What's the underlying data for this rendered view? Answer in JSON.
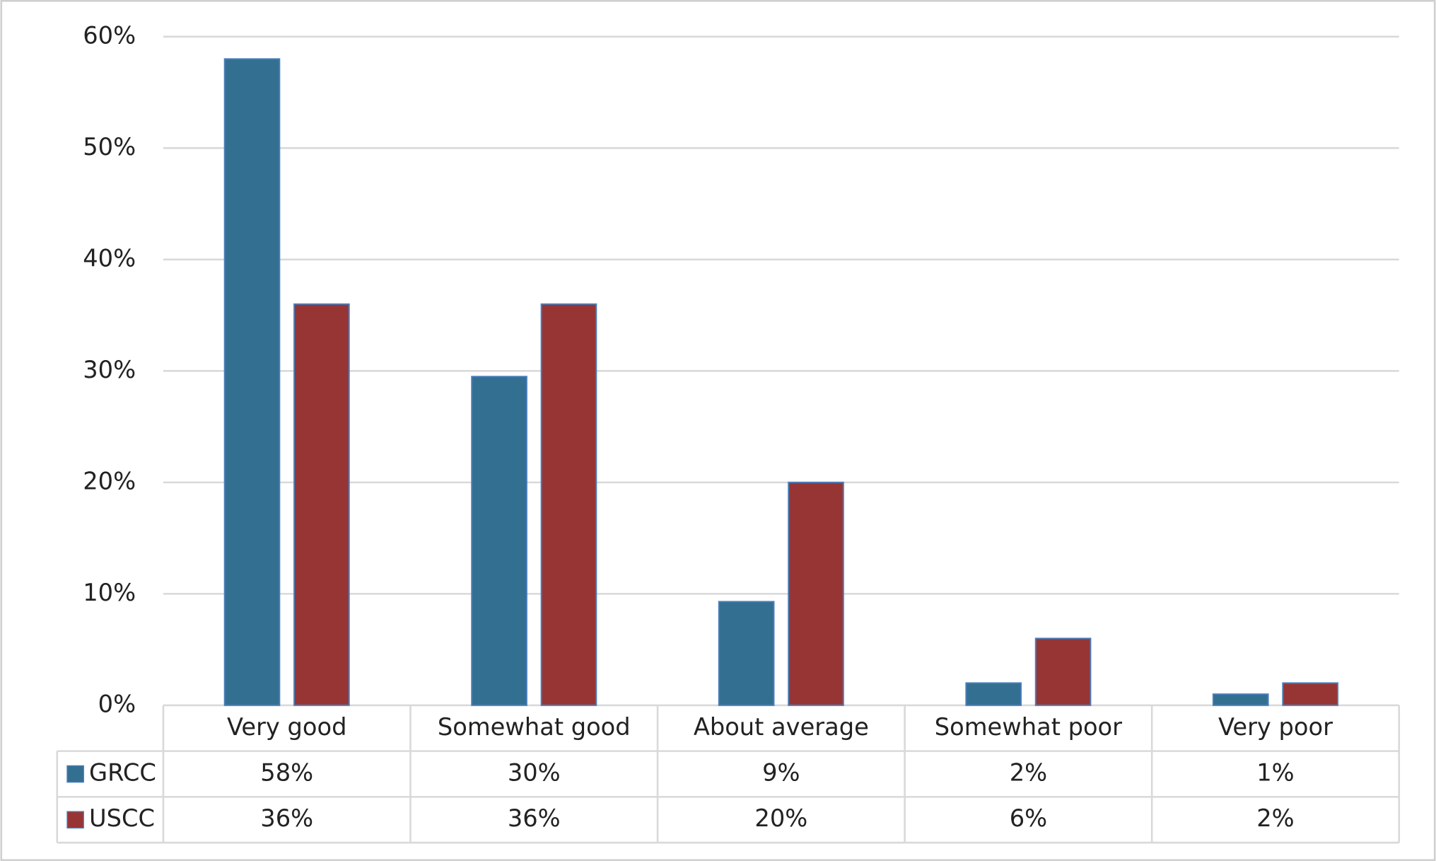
{
  "chart_data": {
    "type": "bar",
    "categories": [
      "Very good",
      "Somewhat good",
      "About average",
      "Somewhat poor",
      "Very poor"
    ],
    "series": [
      {
        "name": "GRCC",
        "color": "#336f91",
        "values": [
          58,
          29.5,
          9.3,
          2,
          1
        ],
        "value_labels": [
          "58%",
          "30%",
          "9%",
          "2%",
          "1%"
        ]
      },
      {
        "name": "USCC",
        "color": "#973535",
        "values": [
          36,
          36,
          20,
          6,
          2
        ],
        "value_labels": [
          "36%",
          "36%",
          "20%",
          "6%",
          "2%"
        ]
      }
    ],
    "ylim": [
      0,
      60
    ],
    "yticks": [
      {
        "value": 0,
        "label": "0%"
      },
      {
        "value": 10,
        "label": "10%"
      },
      {
        "value": 20,
        "label": "20%"
      },
      {
        "value": 30,
        "label": "30%"
      },
      {
        "value": 40,
        "label": "40%"
      },
      {
        "value": 50,
        "label": "50%"
      },
      {
        "value": 60,
        "label": "60%"
      }
    ],
    "grid": true
  }
}
